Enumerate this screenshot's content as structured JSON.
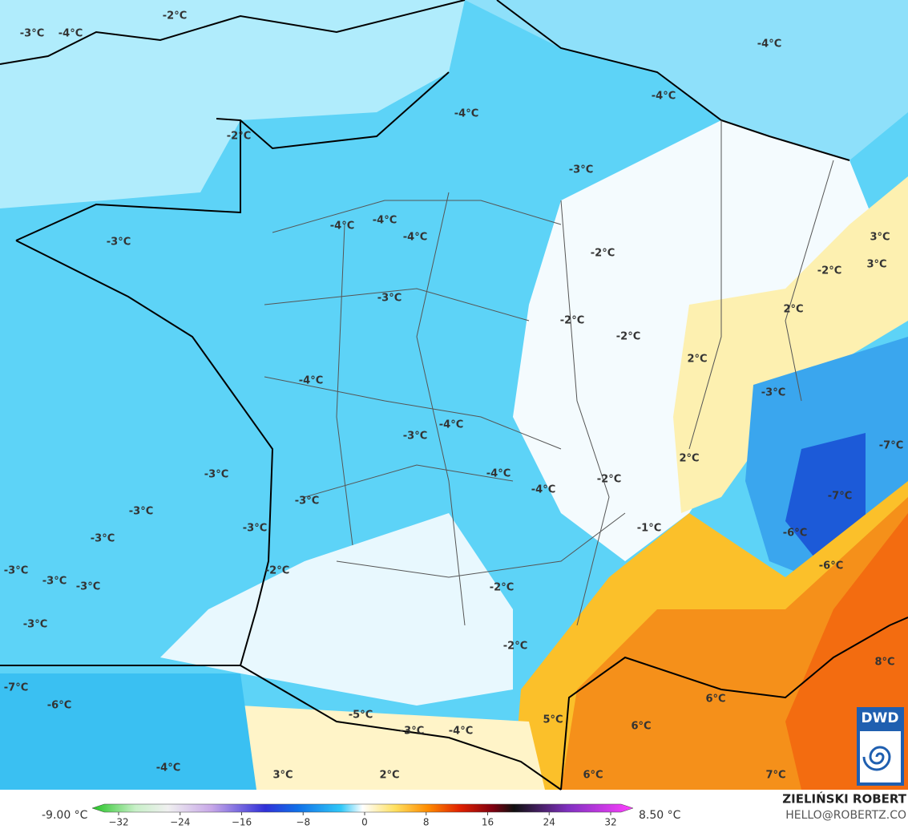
{
  "map": {
    "labels": [
      "-2°C",
      "-3°C",
      "-4°C",
      "-4°C",
      "-4°C",
      "-4°C",
      "-2°C",
      "-3°C",
      "-4°C",
      "-4°C",
      "-4°C",
      "3°C",
      "-3°C",
      "-2°C",
      "3°C",
      "-2°C",
      "-3°C",
      "2°C",
      "-2°C",
      "-2°C",
      "2°C",
      "-4°C",
      "-3°C",
      "-4°C",
      "-3°C",
      "-7°C",
      "2°C",
      "-3°C",
      "-4°C",
      "-2°C",
      "-4°C",
      "-7°C",
      "-3°C",
      "-3°C",
      "-3°C",
      "-1°C",
      "-6°C",
      "-3°C",
      "-6°C",
      "-3°C",
      "-2°C",
      "-3°C",
      "-3°C",
      "-2°C",
      "-3°C",
      "-2°C",
      "8°C",
      "-7°C",
      "6°C",
      "-6°C",
      "-5°C",
      "5°C",
      "6°C",
      "-3°C",
      "-4°C",
      "-4°C",
      "3°C",
      "2°C",
      "6°C",
      "7°C"
    ],
    "logo": "DWD"
  },
  "legend": {
    "min": "-9.00 °C",
    "max": "8.50 °C",
    "ticks": [
      "−32",
      "−24",
      "−16",
      "−8",
      "0",
      "8",
      "16",
      "24",
      "32"
    ]
  },
  "credits": {
    "author": "ZIELIŃSKI ROBERT",
    "email": "HELLO@ROBERTZ.CO"
  }
}
